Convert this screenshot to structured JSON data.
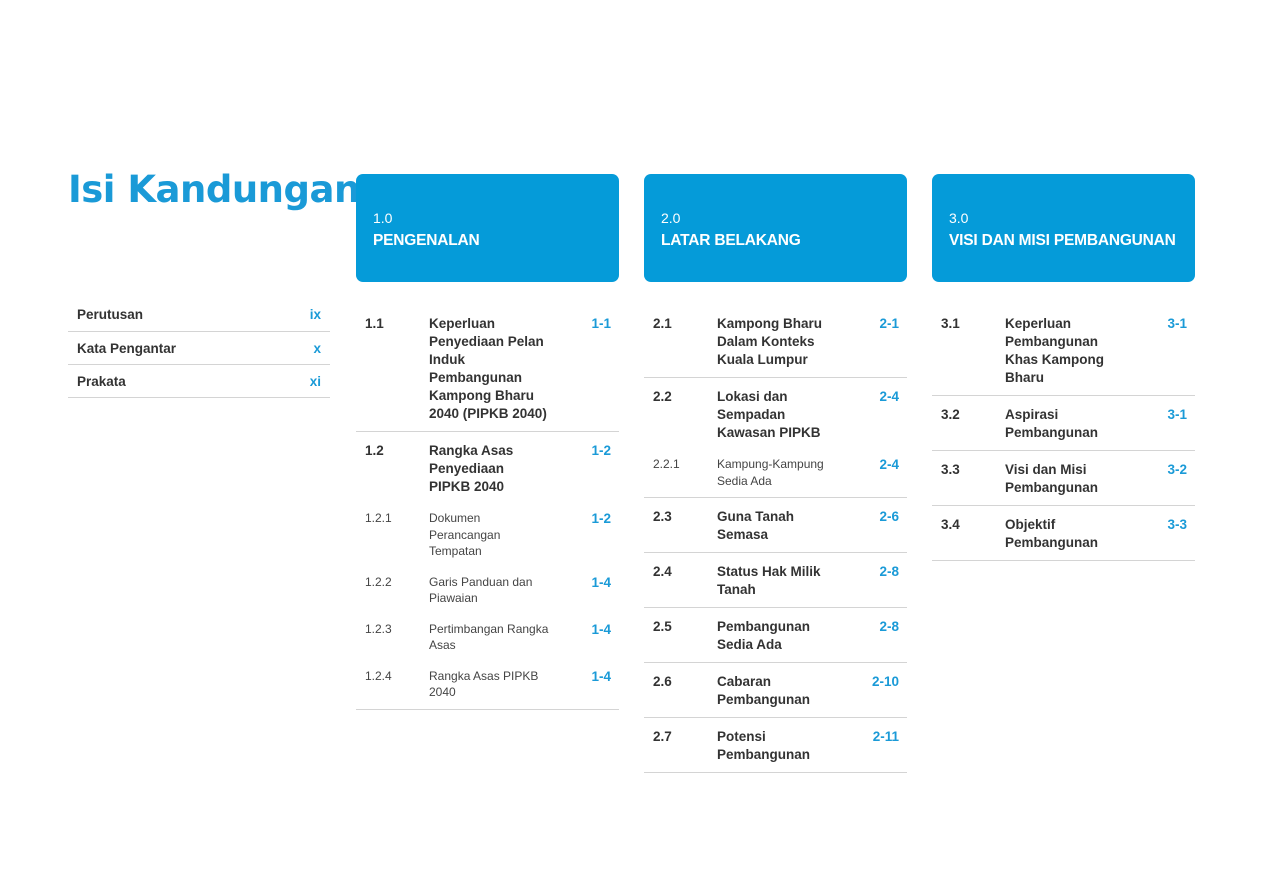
{
  "page_title": "Isi Kandungan",
  "prelims": [
    {
      "label": "Perutusan",
      "page": "ix"
    },
    {
      "label": "Kata Pengantar",
      "page": "x"
    },
    {
      "label": "Prakata",
      "page": "xi"
    }
  ],
  "chapters": [
    {
      "number": "1.0",
      "title": "PENGENALAN",
      "groups": [
        {
          "number": "1.1",
          "title": "Keperluan Penyediaan Pelan Induk Pembangunan Kampong Bharu 2040 (PIPKB 2040)",
          "page": "1-1",
          "subs": []
        },
        {
          "number": "1.2",
          "title": "Rangka Asas Penyediaan PIPKB 2040",
          "page": "1-2",
          "subs": [
            {
              "number": "1.2.1",
              "title": "Dokumen Perancangan Tempatan",
              "page": "1-2"
            },
            {
              "number": "1.2.2",
              "title": "Garis Panduan dan Piawaian",
              "page": "1-4"
            },
            {
              "number": "1.2.3",
              "title": "Pertimbangan Rangka Asas",
              "page": "1-4"
            },
            {
              "number": "1.2.4",
              "title": "Rangka Asas PIPKB 2040",
              "page": "1-4"
            }
          ]
        }
      ]
    },
    {
      "number": "2.0",
      "title": "LATAR BELAKANG",
      "groups": [
        {
          "number": "2.1",
          "title": "Kampong Bharu Dalam Konteks Kuala Lumpur",
          "page": "2-1",
          "subs": []
        },
        {
          "number": "2.2",
          "title": "Lokasi dan Sempadan Kawasan PIPKB",
          "page": "2-4",
          "subs": [
            {
              "number": "2.2.1",
              "title": "Kampung-Kampung Sedia Ada",
              "page": "2-4"
            }
          ]
        },
        {
          "number": "2.3",
          "title": "Guna Tanah Semasa",
          "page": "2-6",
          "subs": []
        },
        {
          "number": "2.4",
          "title": "Status Hak Milik Tanah",
          "page": "2-8",
          "subs": []
        },
        {
          "number": "2.5",
          "title": "Pembangunan Sedia Ada",
          "page": "2-8",
          "subs": []
        },
        {
          "number": "2.6",
          "title": "Cabaran Pembangunan",
          "page": "2-10",
          "subs": []
        },
        {
          "number": "2.7",
          "title": "Potensi Pembangunan",
          "page": "2-11",
          "subs": []
        }
      ]
    },
    {
      "number": "3.0",
      "title": "VISI DAN MISI PEMBANGUNAN",
      "groups": [
        {
          "number": "3.1",
          "title": "Keperluan Pembangunan Khas Kampong Bharu",
          "page": "3-1",
          "subs": []
        },
        {
          "number": "3.2",
          "title": "Aspirasi Pembangunan",
          "page": "3-1",
          "subs": []
        },
        {
          "number": "3.3",
          "title": "Visi dan Misi Pembangunan",
          "page": "3-2",
          "subs": []
        },
        {
          "number": "3.4",
          "title": "Objektif Pembangunan",
          "page": "3-3",
          "subs": []
        }
      ]
    }
  ]
}
